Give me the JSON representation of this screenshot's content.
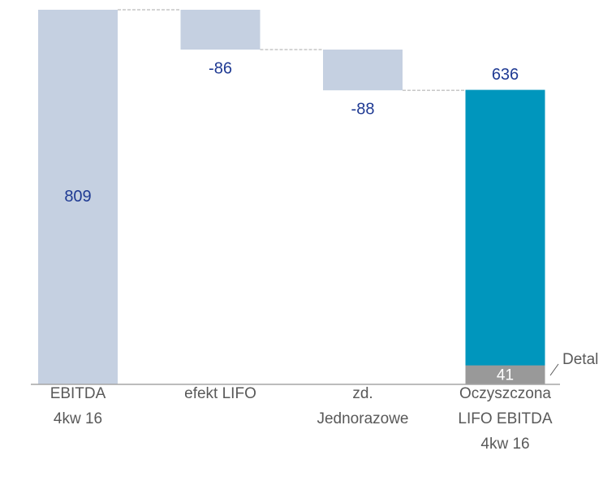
{
  "chart_data": {
    "type": "waterfall",
    "categories": [
      [
        "EBITDA",
        "4kw 16"
      ],
      [
        "efekt LIFO"
      ],
      [
        "zd.",
        "Jednorazowe"
      ],
      [
        "Oczyszczona",
        "LIFO EBITDA",
        "4kw 16"
      ]
    ],
    "values": [
      809,
      -86,
      -88,
      636
    ],
    "totals": [
      true,
      false,
      false,
      true
    ],
    "colors": [
      "#c5d0e1",
      "#c5d0e1",
      "#c5d0e1",
      "#0096bd"
    ],
    "segment": {
      "name": "Detal",
      "value": 41,
      "color": "#999999"
    }
  }
}
